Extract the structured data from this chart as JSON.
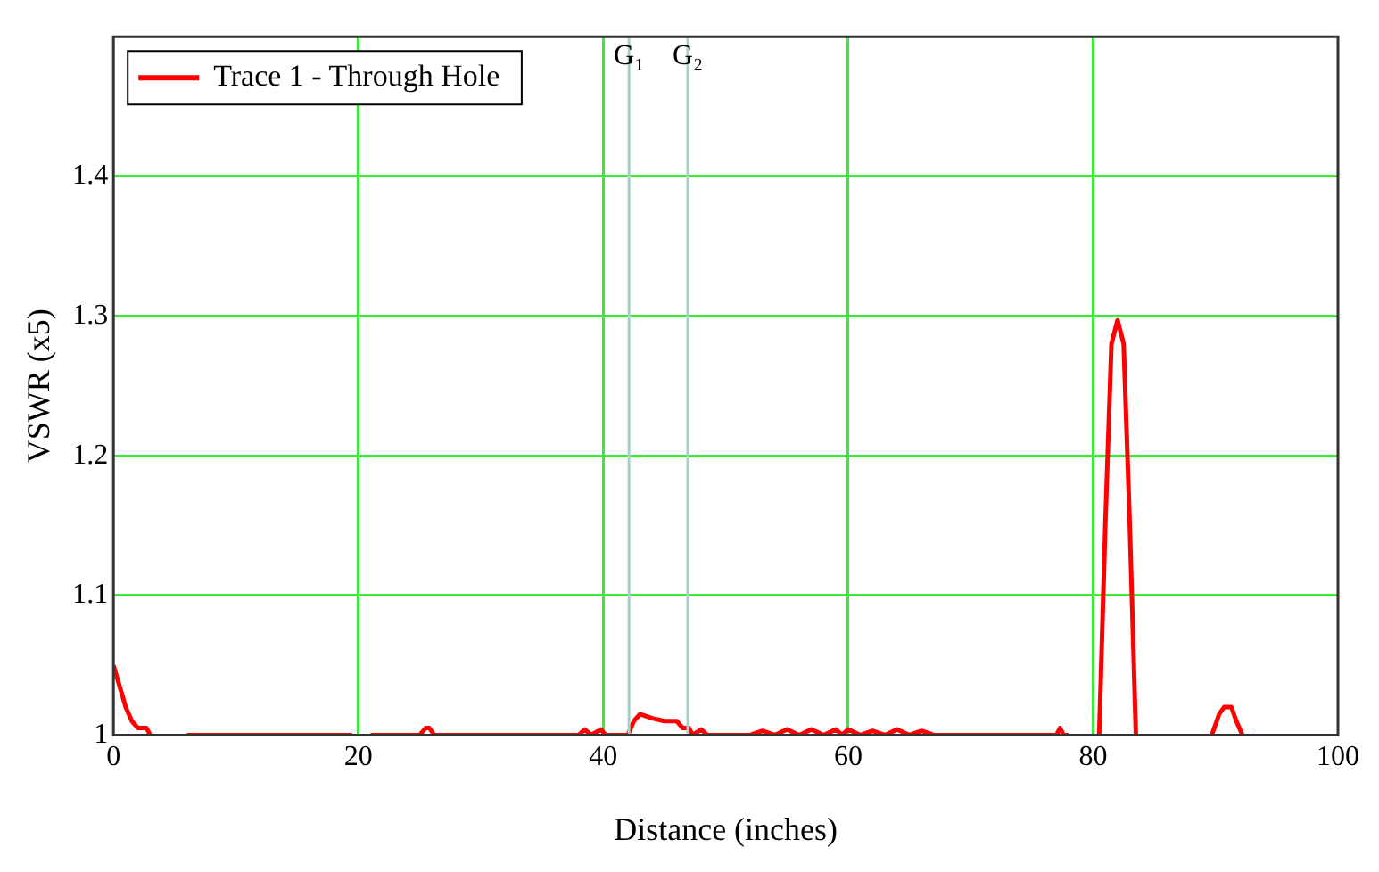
{
  "chart_data": {
    "type": "line",
    "xlabel": "Distance (inches)",
    "ylabel": "VSWR (x5)",
    "x": [
      0,
      0.5,
      1,
      1.5,
      2,
      2.7,
      3,
      3.1,
      6,
      10,
      15,
      19.5,
      19.6,
      21,
      25,
      25.5,
      25.8,
      26.2,
      27,
      35,
      38,
      38.5,
      39,
      39.8,
      40.2,
      41,
      42,
      42.5,
      43,
      44,
      45,
      46,
      46.5,
      47,
      47.3,
      48,
      48.5,
      49,
      52,
      53,
      54,
      55,
      56,
      57,
      58,
      59,
      59.5,
      60,
      61,
      62,
      63,
      64,
      65,
      66,
      67,
      68,
      70,
      77,
      77.3,
      77.6,
      78,
      78.1,
      80.5,
      81,
      81.5,
      82,
      82.5,
      83,
      83.5,
      83.6,
      89.7,
      89.9,
      90.3,
      90.7,
      91.3,
      91.7,
      92.2
    ],
    "series": [
      {
        "name": "Trace 1 - Through Hole",
        "color": "#ff0000",
        "values": [
          1.05,
          1.035,
          1.02,
          1.01,
          1.005,
          1.005,
          1.0,
          null,
          1.0,
          1.0,
          1.0,
          1.0,
          null,
          1.0,
          1.0,
          1.005,
          1.005,
          1.0,
          1.0,
          1.0,
          1.0,
          1.004,
          1.0,
          1.004,
          1.0,
          1.0,
          1.0,
          1.01,
          1.015,
          1.012,
          1.01,
          1.01,
          1.005,
          1.005,
          1.0,
          1.004,
          1.0,
          1.0,
          1.0,
          1.003,
          1.0,
          1.004,
          1.0,
          1.004,
          1.0,
          1.004,
          1.0,
          1.004,
          1.0,
          1.003,
          1.0,
          1.004,
          1.0,
          1.003,
          1.0,
          1.0,
          1.0,
          1.0,
          1.005,
          1.0,
          1.0,
          null,
          1.0,
          1.15,
          1.28,
          1.297,
          1.28,
          1.15,
          1.0,
          null,
          1.0,
          1.005,
          1.015,
          1.02,
          1.02,
          1.01,
          1.0
        ]
      }
    ],
    "xlim": [
      0,
      100
    ],
    "xticks": [
      0,
      20,
      40,
      60,
      80,
      100
    ],
    "ylim": [
      1,
      1.5
    ],
    "yticks": [
      1,
      1.1,
      1.2,
      1.3,
      1.4
    ],
    "grid": true,
    "legend": "top left",
    "marker": "none",
    "line_style": "solid",
    "ref_lines": [
      {
        "axis": "x",
        "value": 42.1,
        "label": "G₁",
        "color": "#a8d0c4"
      },
      {
        "axis": "x",
        "value": 46.9,
        "label": "G₂",
        "color": "#a8d0c4"
      }
    ]
  }
}
